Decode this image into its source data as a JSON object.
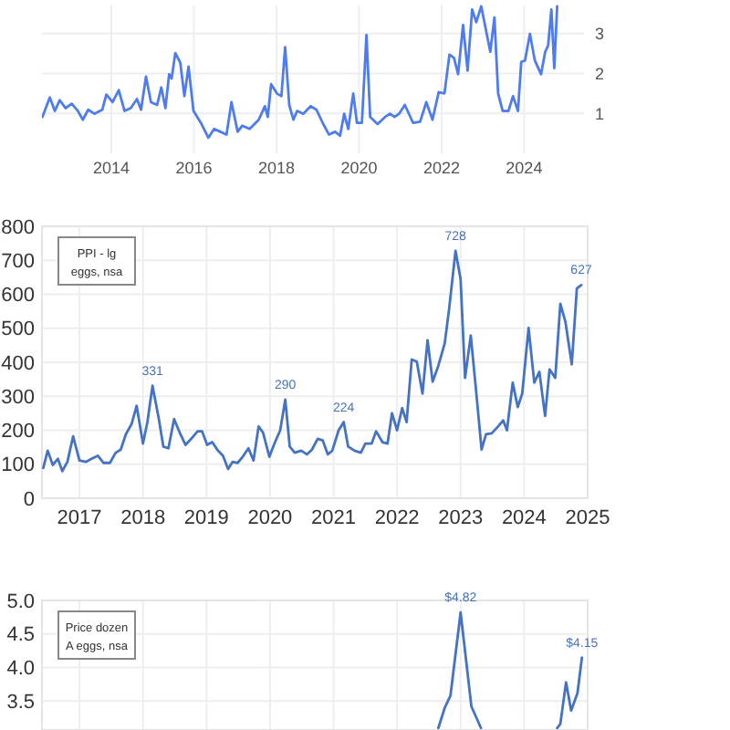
{
  "chart_data": [
    {
      "type": "line",
      "xlim": [
        2012.32,
        2025.45
      ],
      "xticks": [
        2014,
        2016,
        2018,
        2020,
        2022,
        2024
      ],
      "y2lim": [
        0,
        3.7
      ],
      "y2ticks": [
        1,
        2,
        3
      ],
      "grid": true,
      "series": [
        {
          "color": "#4e7cf0",
          "axis": "y2",
          "x": [
            2012.33,
            2012.51,
            2012.63,
            2012.75,
            2012.89,
            2013.04,
            2013.19,
            2013.31,
            2013.44,
            2013.59,
            2013.78,
            2013.88,
            2014.03,
            2014.18,
            2014.32,
            2014.47,
            2014.62,
            2014.72,
            2014.84,
            2014.96,
            2015.11,
            2015.21,
            2015.31,
            2015.4,
            2015.46,
            2015.55,
            2015.67,
            2015.77,
            2015.87,
            2015.99,
            2016.17,
            2016.35,
            2016.49,
            2016.64,
            2016.79,
            2016.91,
            2017.06,
            2017.17,
            2017.35,
            2017.57,
            2017.72,
            2017.79,
            2017.87,
            2018.01,
            2018.12,
            2018.21,
            2018.31,
            2018.41,
            2018.5,
            2018.65,
            2018.83,
            2018.97,
            2019.12,
            2019.27,
            2019.42,
            2019.54,
            2019.64,
            2019.74,
            2019.86,
            2019.95,
            2020.07,
            2020.18,
            2020.27,
            2020.45,
            2020.63,
            2020.75,
            2020.86,
            2020.97,
            2021.11,
            2021.31,
            2021.48,
            2021.63,
            2021.78,
            2021.93,
            2022.07,
            2022.19,
            2022.3,
            2022.4,
            2022.52,
            2022.63,
            2022.74,
            2022.84,
            2022.96,
            2023.08,
            2023.18,
            2023.28,
            2023.37,
            2023.48,
            2023.62,
            2023.73,
            2023.85,
            2023.93,
            2024.02,
            2024.14,
            2024.26,
            2024.41,
            2024.51,
            2024.58,
            2024.66,
            2024.73,
            2024.8
          ],
          "values": [
            0.91,
            1.4,
            1.06,
            1.33,
            1.13,
            1.24,
            1.06,
            0.84,
            1.09,
            0.99,
            1.09,
            1.47,
            1.28,
            1.58,
            1.06,
            1.13,
            1.36,
            1.09,
            1.92,
            1.28,
            1.21,
            1.65,
            1.13,
            1.98,
            1.87,
            2.51,
            2.27,
            1.43,
            2.17,
            1.06,
            0.76,
            0.39,
            0.61,
            0.54,
            0.47,
            1.28,
            0.54,
            0.69,
            0.61,
            0.84,
            1.18,
            0.91,
            1.73,
            1.5,
            1.43,
            2.66,
            1.21,
            0.84,
            1.06,
            0.99,
            1.18,
            1.09,
            0.76,
            0.47,
            0.54,
            0.44,
            0.99,
            0.61,
            1.5,
            0.76,
            0.76,
            2.96,
            0.91,
            0.73,
            0.91,
            0.99,
            0.91,
            0.99,
            1.21,
            0.76,
            0.79,
            1.28,
            0.84,
            1.53,
            1.5,
            2.47,
            2.39,
            1.98,
            3.21,
            2.07,
            3.6,
            3.28,
            3.68,
            3.06,
            2.54,
            3.4,
            1.5,
            1.06,
            1.06,
            1.43,
            1.06,
            2.29,
            2.32,
            2.99,
            2.32,
            1.98,
            2.54,
            2.69,
            3.6,
            2.13,
            3.68
          ]
        }
      ]
    },
    {
      "type": "line",
      "xlim": [
        2016.41,
        2025
      ],
      "xticks": [
        2017,
        2018,
        2019,
        2020,
        2021,
        2022,
        2023,
        2024,
        2025
      ],
      "ylim": [
        0,
        800
      ],
      "yticks": [
        0,
        100,
        200,
        300,
        400,
        500,
        600,
        700,
        800
      ],
      "grid": true,
      "annotations": [
        "PPI - lg eggs, nsa"
      ],
      "series": [
        {
          "color": "#4472c4",
          "x": [
            2016.43,
            2016.5,
            2016.58,
            2016.66,
            2016.73,
            2016.81,
            2016.9,
            2017,
            2017.1,
            2017.19,
            2017.29,
            2017.38,
            2017.48,
            2017.57,
            2017.65,
            2017.73,
            2017.82,
            2017.9,
            2018,
            2018.07,
            2018.15,
            2018.25,
            2018.32,
            2018.4,
            2018.49,
            2018.59,
            2018.67,
            2018.76,
            2018.86,
            2018.93,
            2019.01,
            2019.09,
            2019.18,
            2019.26,
            2019.34,
            2019.41,
            2019.49,
            2019.57,
            2019.66,
            2019.74,
            2019.82,
            2019.89,
            2019.99,
            2020.07,
            2020.16,
            2020.24,
            2020.31,
            2020.39,
            2020.49,
            2020.58,
            2020.66,
            2020.75,
            2020.83,
            2020.91,
            2020.98,
            2021.08,
            2021.16,
            2021.23,
            2021.33,
            2021.43,
            2021.5,
            2021.6,
            2021.67,
            2021.77,
            2021.85,
            2021.92,
            2022,
            2022.08,
            2022.15,
            2022.23,
            2022.31,
            2022.4,
            2022.48,
            2022.56,
            2022.65,
            2022.75,
            2022.82,
            2022.92,
            2023,
            2023.07,
            2023.16,
            2023.25,
            2023.33,
            2023.4,
            2023.49,
            2023.59,
            2023.67,
            2023.73,
            2023.82,
            2023.9,
            2023.97,
            2024.07,
            2024.16,
            2024.24,
            2024.33,
            2024.4,
            2024.49,
            2024.57,
            2024.65,
            2024.75,
            2024.83,
            2024.9
          ],
          "values": [
            89,
            140,
            98,
            116,
            80,
            107,
            182,
            111,
            107,
            116,
            125,
            104,
            104,
            134,
            143,
            188,
            218,
            272,
            161,
            224,
            331,
            233,
            152,
            147,
            233,
            188,
            157,
            175,
            197,
            197,
            157,
            165,
            140,
            125,
            86,
            107,
            104,
            122,
            147,
            111,
            211,
            193,
            122,
            161,
            200,
            290,
            152,
            134,
            140,
            129,
            143,
            175,
            170,
            129,
            140,
            200,
            224,
            152,
            140,
            134,
            161,
            161,
            197,
            165,
            161,
            250,
            200,
            265,
            224,
            408,
            402,
            308,
            465,
            343,
            390,
            456,
            558,
            728,
            644,
            354,
            479,
            304,
            143,
            188,
            191,
            211,
            229,
            200,
            340,
            268,
            308,
            501,
            340,
            372,
            242,
            379,
            354,
            572,
            519,
            394,
            617,
            627
          ],
          "value_labels": [
            null,
            null,
            null,
            null,
            null,
            null,
            null,
            null,
            null,
            null,
            null,
            null,
            null,
            null,
            null,
            null,
            null,
            null,
            null,
            null,
            "331",
            null,
            null,
            null,
            null,
            null,
            null,
            null,
            null,
            null,
            null,
            null,
            null,
            null,
            null,
            null,
            null,
            null,
            null,
            null,
            null,
            null,
            null,
            null,
            null,
            "290",
            null,
            null,
            null,
            null,
            null,
            null,
            null,
            null,
            null,
            null,
            "224",
            null,
            null,
            null,
            null,
            null,
            null,
            null,
            null,
            null,
            null,
            null,
            null,
            null,
            null,
            null,
            null,
            null,
            null,
            null,
            null,
            "728",
            null,
            null,
            null,
            null,
            null,
            null,
            null,
            null,
            null,
            null,
            null,
            null,
            null,
            null,
            null,
            null,
            null,
            null,
            null,
            null,
            null,
            null,
            null,
            "627"
          ]
        }
      ]
    },
    {
      "type": "line",
      "xlim": [
        2016.41,
        2025
      ],
      "xticks": [
        {
          "value": 2017,
          "label": null
        },
        {
          "value": 2018,
          "label": null
        },
        {
          "value": 2019,
          "label": null
        },
        {
          "value": 2020,
          "label": null
        },
        {
          "value": 2021,
          "label": null
        },
        {
          "value": 2022,
          "label": null
        },
        {
          "value": 2023,
          "label": null
        },
        {
          "value": 2024,
          "label": null
        },
        {
          "value": 2025,
          "label": null
        }
      ],
      "ylim": [
        3.07,
        5
      ],
      "yticks": [
        {
          "value": 3.5,
          "label": "3.5"
        },
        {
          "value": 4,
          "label": "4.0"
        },
        {
          "value": 4.5,
          "label": "4.5"
        },
        {
          "value": 5,
          "label": "5.0"
        }
      ],
      "grid": true,
      "tick_labels": "y",
      "annotations": [
        "Price dozen A eggs, nsa"
      ],
      "series": [
        {
          "color": "#4472c4",
          "x": [
            2022.65,
            2022.75,
            2022.84,
            2023,
            2023.17,
            2023.25,
            2023.32,
            2023.8,
            2024.52,
            2024.57,
            2024.66,
            2024.74,
            2024.84,
            2024.91
          ],
          "values": [
            3.1,
            3.4,
            3.58,
            4.82,
            3.42,
            3.25,
            3.1,
            null,
            3.1,
            3.16,
            3.78,
            3.36,
            3.62,
            4.15
          ],
          "value_labels": [
            null,
            null,
            null,
            "$4.82",
            null,
            null,
            null,
            null,
            null,
            null,
            null,
            null,
            null,
            "$4.15"
          ]
        }
      ]
    }
  ]
}
